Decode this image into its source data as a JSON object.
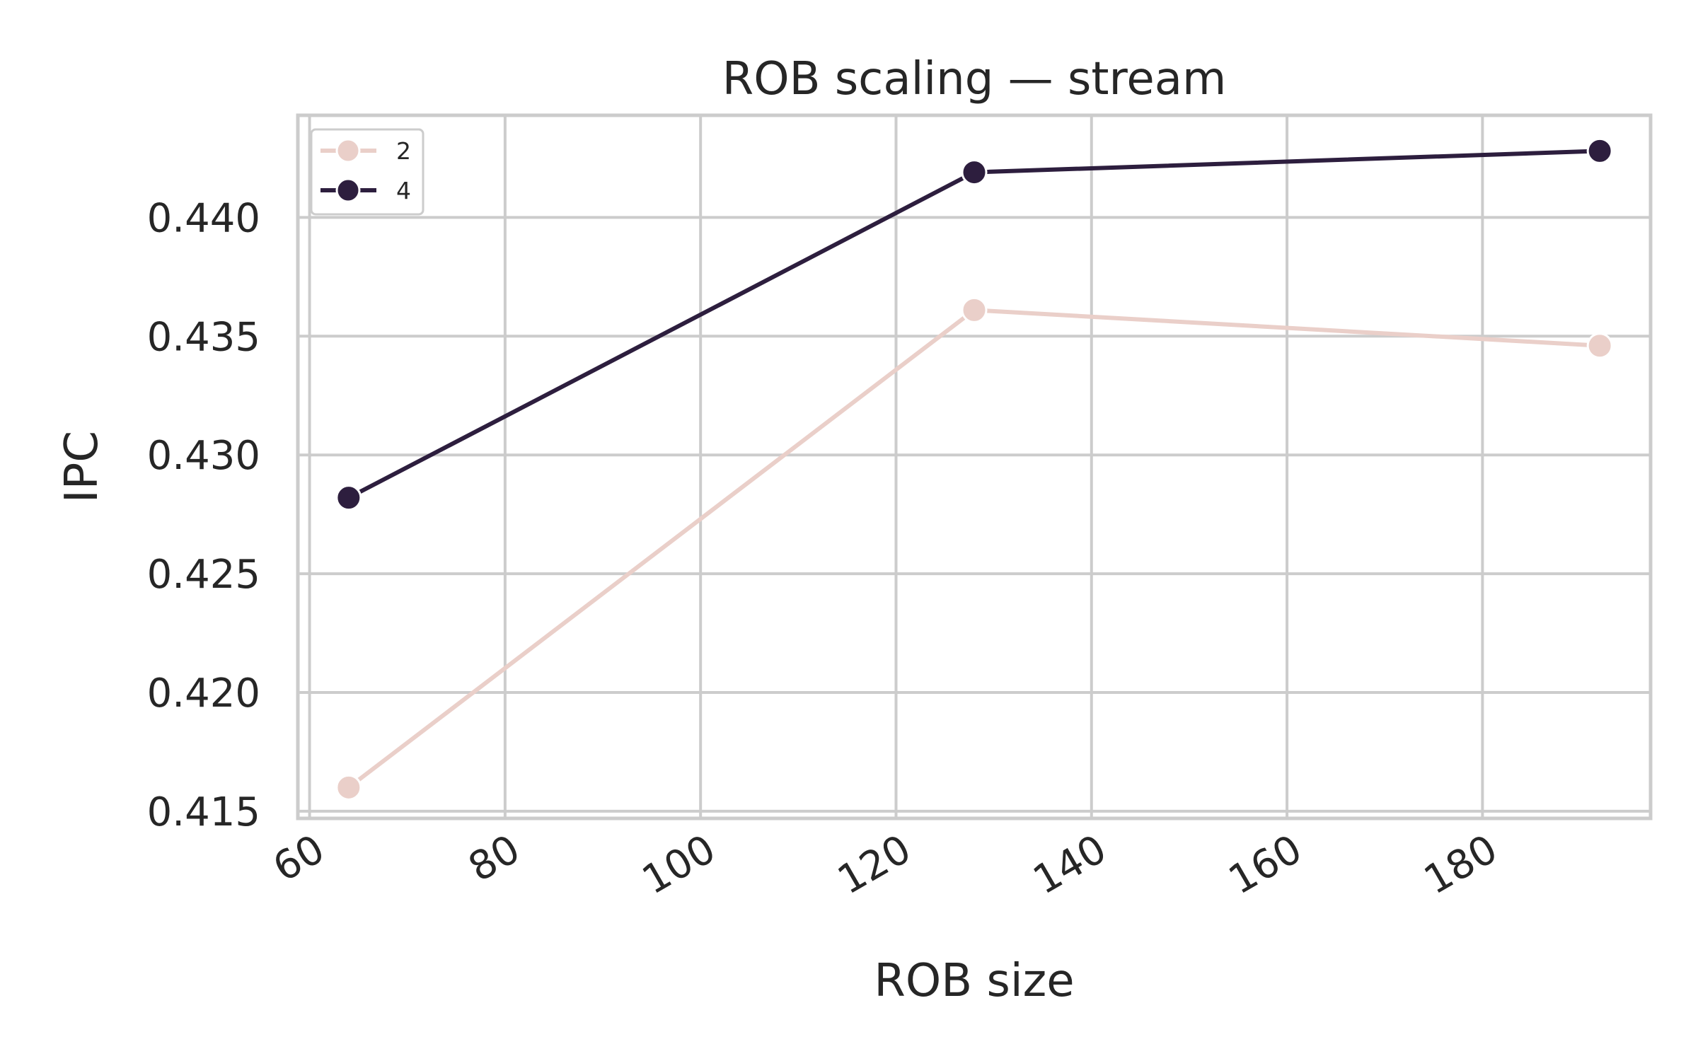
{
  "chart_data": {
    "type": "line",
    "title": "ROB scaling — stream",
    "xlabel": "ROB size",
    "ylabel": "IPC",
    "xlim": [
      58.8,
      197.2
    ],
    "ylim": [
      0.4147,
      0.4443
    ],
    "xticks": [
      60,
      80,
      100,
      120,
      140,
      160,
      180
    ],
    "yticks": [
      0.415,
      0.42,
      0.425,
      0.43,
      0.435,
      0.44
    ],
    "ytick_labels": [
      "0.415",
      "0.420",
      "0.425",
      "0.430",
      "0.435",
      "0.440"
    ],
    "grid": true,
    "legend_position": "top-left",
    "series": [
      {
        "name": "2",
        "color": "#eacfc9",
        "x": [
          64,
          128,
          192
        ],
        "y": [
          0.416,
          0.4361,
          0.4346
        ]
      },
      {
        "name": "4",
        "color": "#2d1e3e",
        "x": [
          64,
          128,
          192
        ],
        "y": [
          0.4282,
          0.4419,
          0.4428
        ]
      }
    ]
  }
}
